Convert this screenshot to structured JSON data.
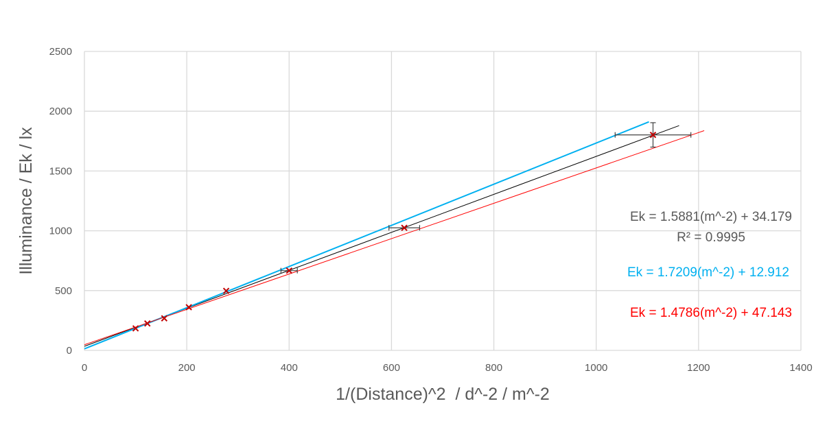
{
  "chart_data": {
    "type": "scatter",
    "title": "",
    "xlabel": "1/(Distance)^2  / d^-2 / m^-2",
    "ylabel": "Illuminance / Ek / lx",
    "xlim": [
      0,
      1400
    ],
    "ylim": [
      0,
      2500
    ],
    "xticks": [
      "0",
      "200",
      "400",
      "600",
      "800",
      "1000",
      "1200",
      "1400"
    ],
    "yticks": [
      "0",
      "500",
      "1000",
      "1500",
      "2000",
      "2500"
    ],
    "grid": true,
    "points": [
      {
        "x": 100,
        "y": 184
      },
      {
        "x": 123,
        "y": 225
      },
      {
        "x": 156,
        "y": 268
      },
      {
        "x": 204,
        "y": 361
      },
      {
        "x": 277,
        "y": 498
      },
      {
        "x": 400,
        "y": 667
      },
      {
        "x": 625,
        "y": 1025
      },
      {
        "x": 1111,
        "y": 1802
      }
    ],
    "x_errors": [
      0,
      0,
      0,
      0,
      0,
      16,
      30,
      74
    ],
    "y_errors": [
      0,
      0,
      0,
      0,
      0,
      0,
      0,
      102
    ],
    "series": [
      {
        "slope": 1.5881,
        "intercept": 34.179,
        "color": "#000000",
        "x_range": [
          0,
          1162
        ],
        "width": 1
      },
      {
        "slope": 1.7209,
        "intercept": 12.912,
        "color": "#00b0f0",
        "x_range": [
          0,
          1103
        ],
        "width": 2
      },
      {
        "slope": 1.4786,
        "intercept": 47.143,
        "color": "#ff0000",
        "x_range": [
          0,
          1211
        ],
        "width": 1
      }
    ],
    "annotations": [
      {
        "line1": "Ek = 1.5881(m^-2) + 34.179",
        "line2": "R² = 0.9995",
        "color": "#595959"
      },
      {
        "line1": "Ek = 1.7209(m^-2) + 12.912",
        "color": "#00b0f0"
      },
      {
        "line1": "Ek = 1.4786(m^-2) + 47.143",
        "color": "#ff0000"
      }
    ],
    "marker_color": "#c00000"
  }
}
